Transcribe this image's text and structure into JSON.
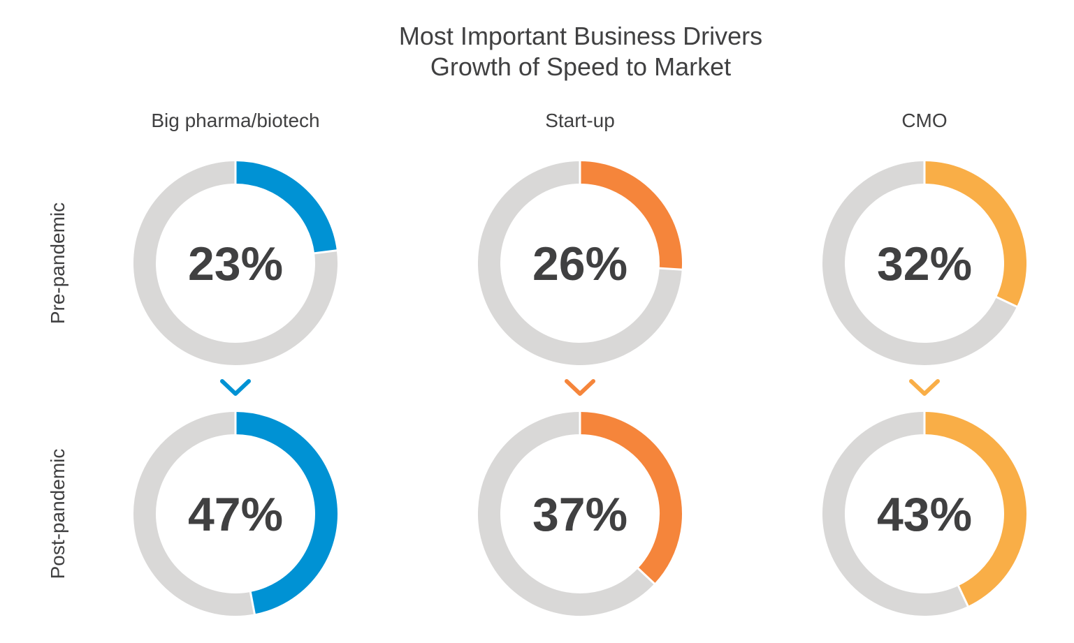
{
  "title": [
    "Most Important Business Drivers",
    "Growth of Speed to Market"
  ],
  "chart_data": [
    {
      "type": "pie",
      "subtype": "donut",
      "name": "Big pharma/biotech",
      "color": "#0092d4",
      "track_color": "#d9d8d7",
      "rows": [
        "Pre-pandemic",
        "Post-pandemic"
      ],
      "values": [
        23,
        47
      ],
      "labels": [
        "23%",
        "47%"
      ]
    },
    {
      "type": "pie",
      "subtype": "donut",
      "name": "Start-up",
      "color": "#f5853b",
      "track_color": "#d9d8d7",
      "rows": [
        "Pre-pandemic",
        "Post-pandemic"
      ],
      "values": [
        26,
        37
      ],
      "labels": [
        "26%",
        "37%"
      ]
    },
    {
      "type": "pie",
      "subtype": "donut",
      "name": "CMO",
      "color": "#f9ae47",
      "track_color": "#d9d8d7",
      "rows": [
        "Pre-pandemic",
        "Post-pandemic"
      ],
      "values": [
        32,
        43
      ],
      "labels": [
        "32%",
        "43%"
      ]
    }
  ],
  "row_labels": [
    "Pre-pandemic",
    "Post-pandemic"
  ],
  "arrow_icon": "chevron-down-icon"
}
